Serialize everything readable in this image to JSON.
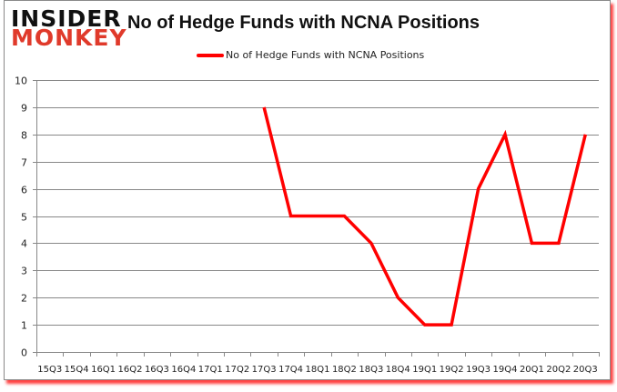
{
  "brand": {
    "line1": "INSIDER",
    "line2": "MONKEY",
    "color_primary": "#111111",
    "color_accent": "#e03a2b"
  },
  "chart_data": {
    "type": "line",
    "title": "No of Hedge Funds with NCNA Positions",
    "xlabel": "",
    "ylabel": "",
    "categories": [
      "15Q3",
      "15Q4",
      "16Q1",
      "16Q2",
      "16Q3",
      "16Q4",
      "17Q1",
      "17Q2",
      "17Q3",
      "17Q4",
      "18Q1",
      "18Q2",
      "18Q3",
      "18Q4",
      "19Q1",
      "19Q2",
      "19Q3",
      "19Q4",
      "20Q1",
      "20Q2",
      "20Q3"
    ],
    "series": [
      {
        "name": "No of Hedge Funds with NCNA Positions",
        "color": "#ff0000",
        "values": [
          null,
          null,
          null,
          null,
          null,
          null,
          null,
          null,
          9,
          5,
          5,
          5,
          4,
          2,
          1,
          1,
          6,
          8,
          4,
          4,
          8
        ]
      }
    ],
    "ylim": [
      0,
      10
    ],
    "yticks": [
      0,
      1,
      2,
      3,
      4,
      5,
      6,
      7,
      8,
      9,
      10
    ],
    "grid": true,
    "legend_position": "top"
  }
}
